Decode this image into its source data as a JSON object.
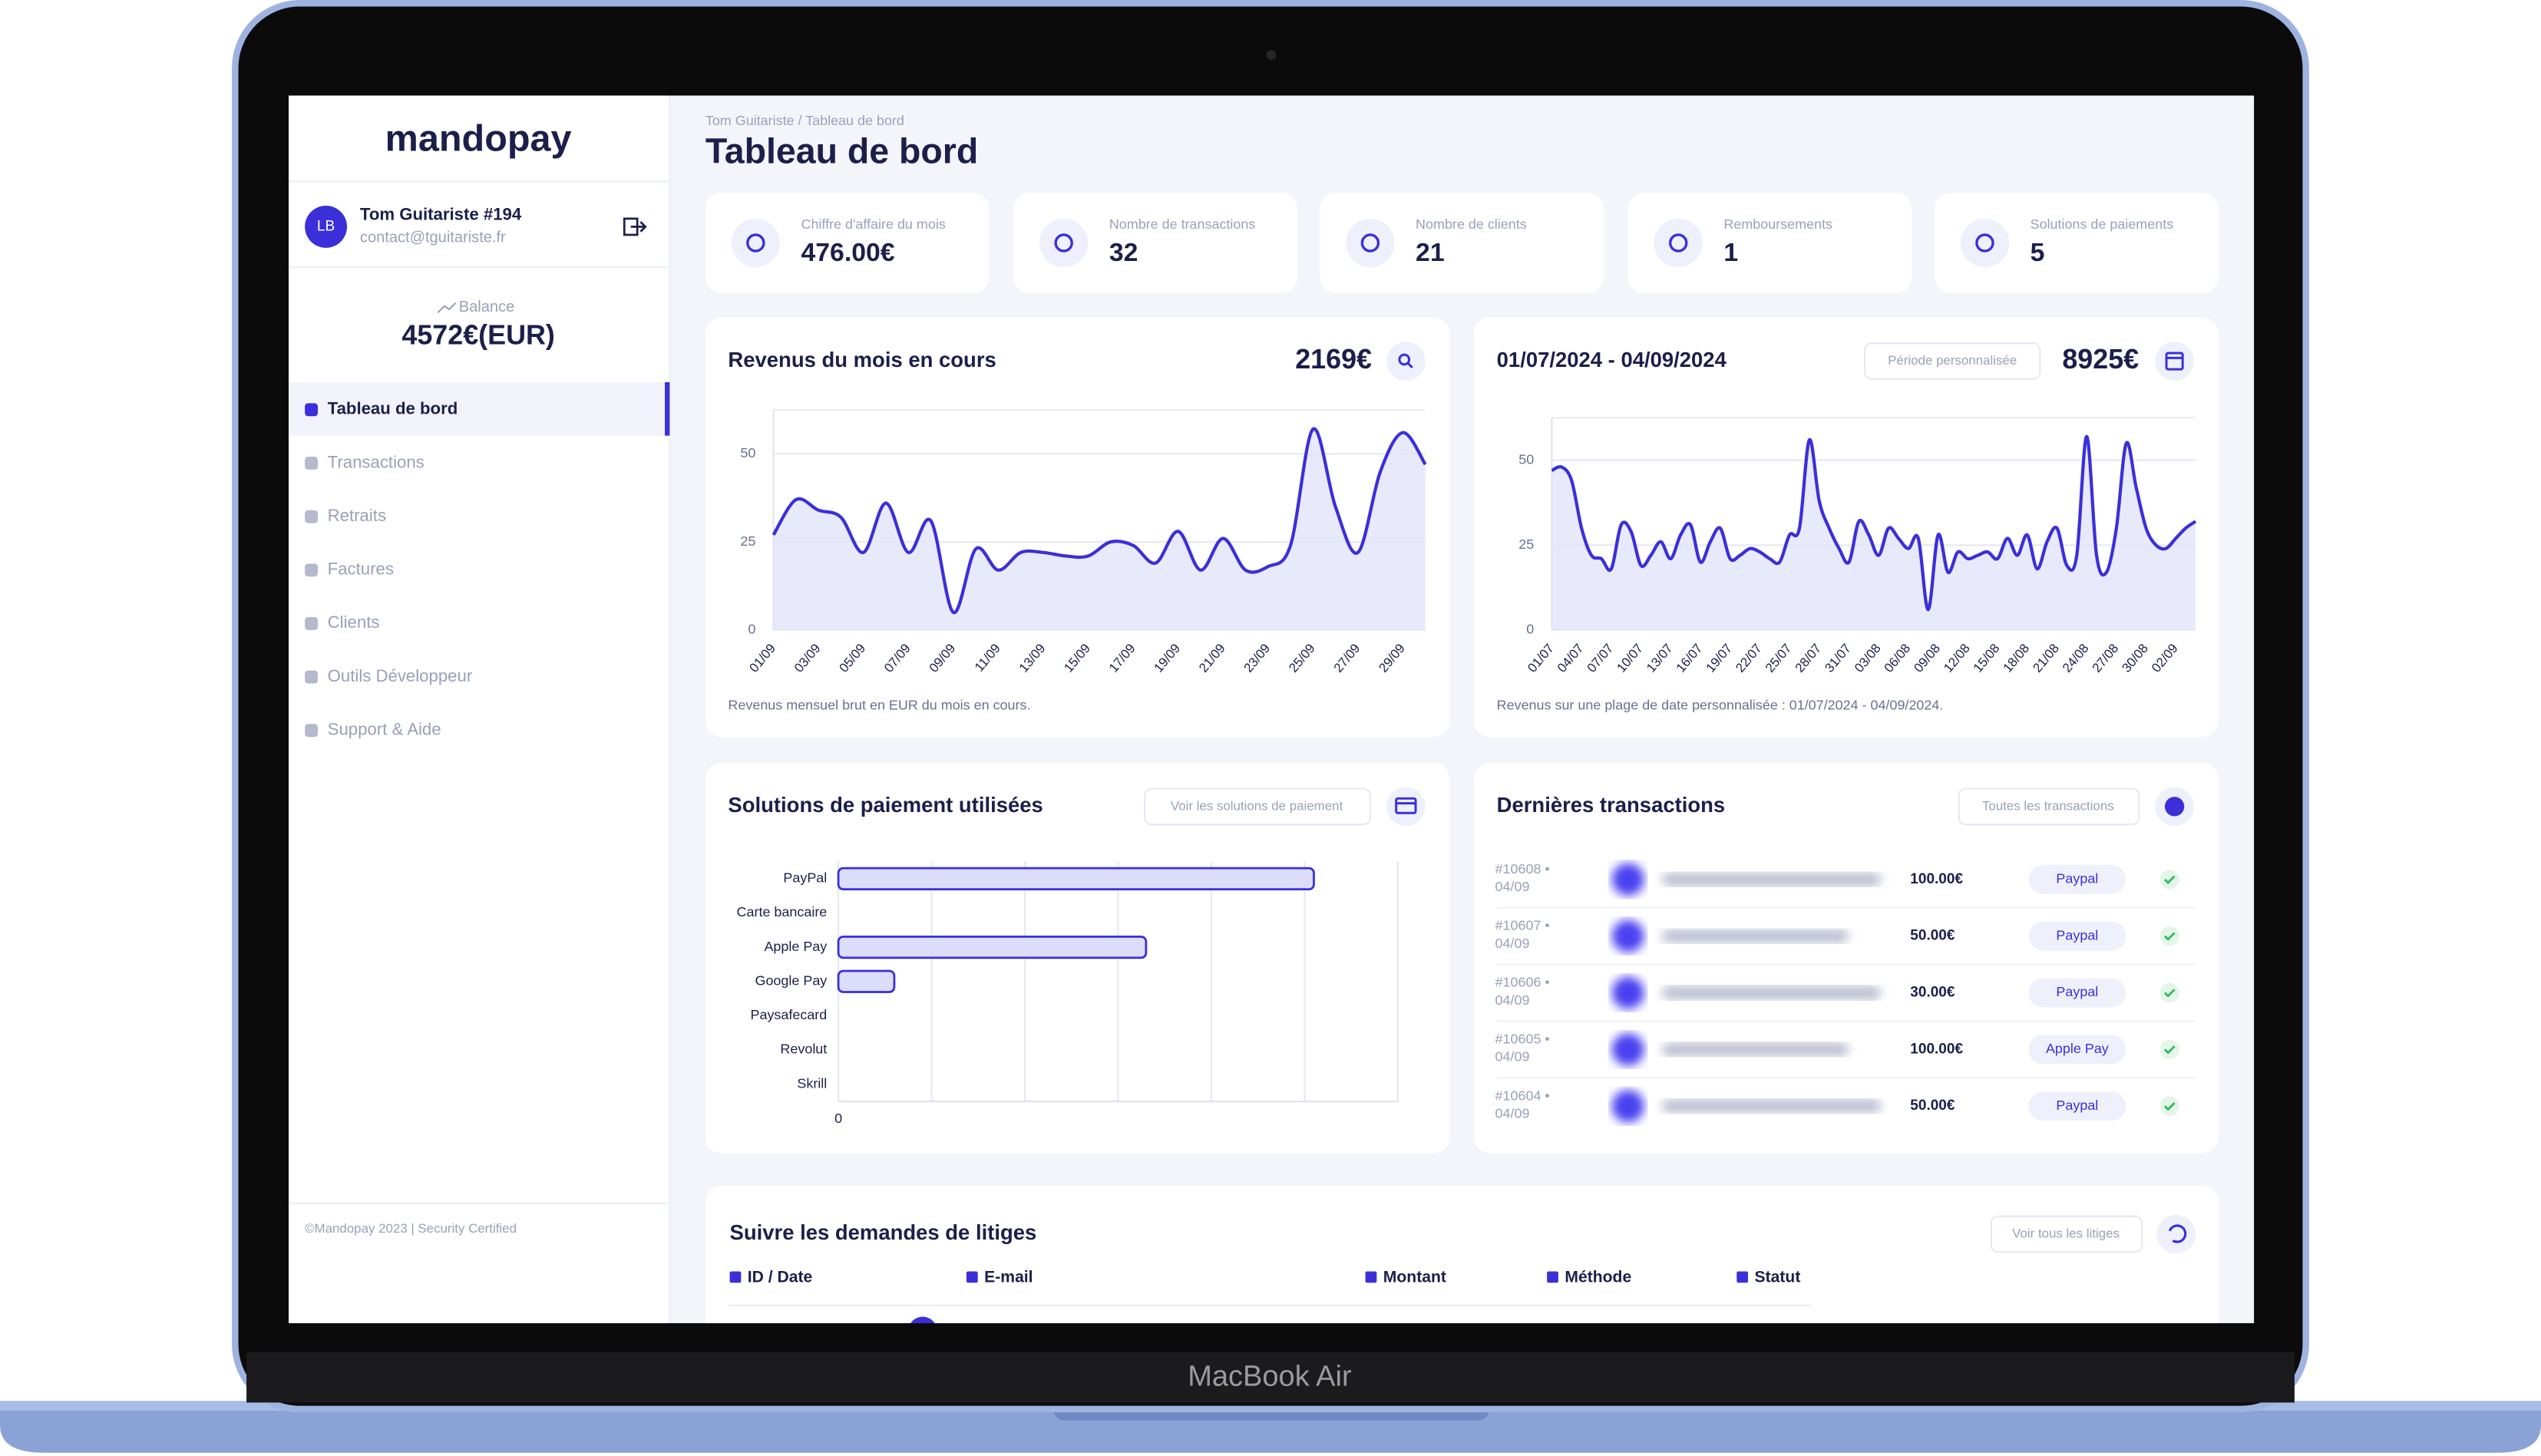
{
  "laptop_label": "MacBook Air",
  "brand": "mandopay",
  "user": {
    "initials": "LB",
    "name": "Tom Guitariste #194",
    "email": "contact@tguitariste.fr"
  },
  "balance": {
    "label": "Balance",
    "value": "4572€(EUR)"
  },
  "nav": [
    "Tableau de bord",
    "Transactions",
    "Retraits",
    "Factures",
    "Clients",
    "Outils Développeur",
    "Support & Aide"
  ],
  "footer": "©Mandopay 2023 | Security Certified",
  "breadcrumb": "Tom Guitariste / Tableau de bord",
  "page_title": "Tableau de bord",
  "stats": [
    {
      "label": "Chiffre d'affaire du mois",
      "value": "476.00€"
    },
    {
      "label": "Nombre de transactions",
      "value": "32"
    },
    {
      "label": "Nombre de clients",
      "value": "21"
    },
    {
      "label": "Remboursements",
      "value": "1"
    },
    {
      "label": "Solutions de paiements",
      "value": "5"
    }
  ],
  "chart_data": [
    {
      "type": "line",
      "title": "Revenus du mois en cours",
      "total": "2169€",
      "caption": "Revenus mensuel brut en EUR du mois en cours.",
      "color": "#3b2fd9",
      "area_color": "#e4e4fb",
      "categories": [
        "01/09",
        null,
        "03/09",
        null,
        "05/09",
        null,
        "07/09",
        null,
        "09/09",
        null,
        "11/09",
        null,
        "13/09",
        null,
        "15/09",
        null,
        "17/09",
        null,
        "19/09",
        null,
        "21/09",
        null,
        "23/09",
        null,
        "25/09",
        null,
        "27/09",
        null,
        "29/09",
        null
      ],
      "values": [
        27,
        37,
        34,
        32,
        22,
        36,
        22,
        31,
        5,
        23,
        17,
        22,
        22,
        21,
        21,
        25,
        24,
        19,
        28,
        17,
        26,
        17,
        18,
        24,
        57,
        35,
        22,
        45,
        56,
        47
      ],
      "ylim": [
        0,
        62.5
      ],
      "yticks": [
        0,
        25,
        50
      ],
      "grid": true
    },
    {
      "type": "line",
      "title": "01/07/2024 - 04/09/2024",
      "button": "Période personnalisée",
      "total": "8925€",
      "caption": "Revenus sur une plage de date personnalisée : 01/07/2024 - 04/09/2024.",
      "color": "#3b2fd9",
      "area_color": "#e4e4fb",
      "categories": [
        "01/07",
        null,
        null,
        "04/07",
        null,
        null,
        "07/07",
        null,
        null,
        "10/07",
        null,
        null,
        "13/07",
        null,
        null,
        "16/07",
        null,
        null,
        "19/07",
        null,
        null,
        "22/07",
        null,
        null,
        "25/07",
        null,
        null,
        "28/07",
        null,
        null,
        "31/07",
        null,
        null,
        "03/08",
        null,
        null,
        "06/08",
        null,
        null,
        "09/08",
        null,
        null,
        "12/08",
        null,
        null,
        "15/08",
        null,
        null,
        "18/08",
        null,
        null,
        "21/08",
        null,
        null,
        "24/08",
        null,
        null,
        "27/08",
        null,
        null,
        "30/08",
        null,
        null,
        "02/09",
        null,
        null
      ],
      "values": [
        47,
        48,
        44,
        30,
        22,
        21,
        18,
        31,
        29,
        19,
        22,
        26,
        21,
        28,
        31,
        20,
        26,
        30,
        21,
        22,
        24,
        23,
        21,
        20,
        28,
        30,
        56,
        38,
        30,
        24,
        20,
        32,
        28,
        22,
        30,
        27,
        24,
        27,
        6,
        28,
        17,
        23,
        21,
        22,
        23,
        21,
        27,
        22,
        28,
        18,
        26,
        30,
        19,
        22,
        57,
        22,
        17,
        30,
        55,
        42,
        30,
        25,
        24,
        27,
        30,
        32
      ],
      "ylim": [
        0,
        62.5
      ],
      "yticks": [
        0,
        25,
        50
      ],
      "grid": true
    },
    {
      "type": "bar",
      "orientation": "horizontal",
      "title": "Solutions de paiement utilisées",
      "button": "Voir les solutions de paiement",
      "color": "#dcdcfb",
      "edge_color": "#3b2fd9",
      "categories": [
        "PayPal",
        "Carte bancaire",
        "Apple Pay",
        "Google Pay",
        "Paysafecard",
        "Revolut",
        "Skrill"
      ],
      "values": [
        5.1,
        0,
        3.3,
        0.6,
        0,
        0,
        0
      ],
      "xlim": [
        0,
        6
      ],
      "xticks": [
        0
      ],
      "grid": true
    }
  ],
  "transactions": {
    "title": "Dernières transactions",
    "button": "Toutes les transactions",
    "rows": [
      {
        "id": "#10608 •",
        "date": "04/09",
        "amount": "100.00€",
        "method": "Paypal"
      },
      {
        "id": "#10607 •",
        "date": "04/09",
        "amount": "50.00€",
        "method": "Paypal"
      },
      {
        "id": "#10606 •",
        "date": "04/09",
        "amount": "30.00€",
        "method": "Paypal"
      },
      {
        "id": "#10605 •",
        "date": "04/09",
        "amount": "100.00€",
        "method": "Apple Pay"
      },
      {
        "id": "#10604 •",
        "date": "04/09",
        "amount": "50.00€",
        "method": "Paypal"
      }
    ]
  },
  "disputes": {
    "title": "Suivre les demandes de litiges",
    "button": "Voir tous les litiges",
    "columns": [
      "ID / Date",
      "E-mail",
      "Montant",
      "Méthode",
      "Statut"
    ]
  }
}
